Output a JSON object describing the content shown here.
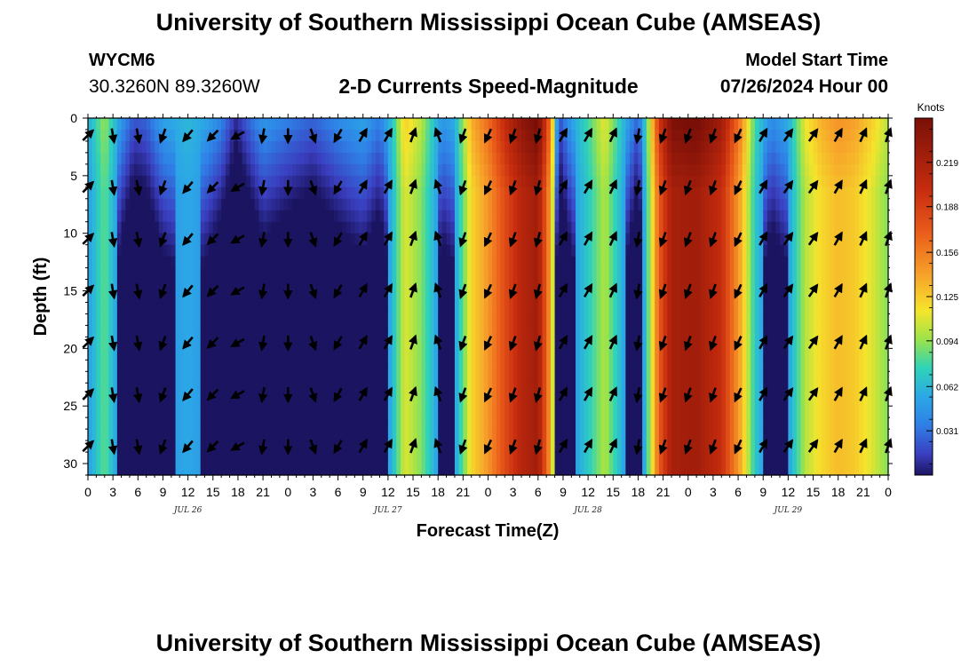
{
  "header": {
    "title": "University of Southern Mississippi Ocean Cube (AMSEAS)",
    "station_id": "WYCM6",
    "station_coords": "30.3260N  89.3260W",
    "subtitle": "2-D Currents Speed-Magnitude",
    "model_start_label": "Model Start Time",
    "model_start_value": "07/26/2024 Hour 00"
  },
  "footer": {
    "title": "University of Southern Mississippi Ocean Cube (AMSEAS)"
  },
  "chart_data": {
    "type": "heatmap",
    "title": "2-D Currents Speed-Magnitude",
    "xlabel": "Forecast Time(Z)",
    "ylabel": "Depth (ft)",
    "xlim": [
      0,
      96
    ],
    "ylim": [
      31,
      0
    ],
    "x_tick_labels": [
      "0",
      "3",
      "6",
      "9",
      "12",
      "15",
      "18",
      "21",
      "0",
      "3",
      "6",
      "9",
      "12",
      "15",
      "18",
      "21",
      "0",
      "3",
      "6",
      "9",
      "12",
      "15",
      "18",
      "21",
      "0",
      "3",
      "6",
      "9",
      "12",
      "15",
      "18",
      "21",
      "0"
    ],
    "date_labels": [
      {
        "hour": 12,
        "label": "JUL 26"
      },
      {
        "hour": 36,
        "label": "JUL 27"
      },
      {
        "hour": 60,
        "label": "JUL 28"
      },
      {
        "hour": 84,
        "label": "JUL 29"
      }
    ],
    "y_ticks": [
      0,
      5,
      10,
      15,
      20,
      25,
      30
    ],
    "colorbar": {
      "unit": "Knots",
      "min": 0.0,
      "max": 0.25,
      "tick_values": [
        0.031,
        0.062,
        0.094,
        0.125,
        0.156,
        0.188,
        0.219
      ],
      "tick_labels": [
        "0.031",
        "0.062",
        "0.094",
        "0.125",
        "0.156",
        "0.188",
        "0.219"
      ]
    },
    "speed_profile": [
      {
        "hour": 0,
        "speed": 0.05
      },
      {
        "hour": 2,
        "speed": 0.085
      },
      {
        "hour": 4,
        "speed": 0.04
      },
      {
        "hour": 5.5,
        "speed": 0.018
      },
      {
        "hour": 7,
        "speed": 0.022
      },
      {
        "hour": 9,
        "speed": 0.045
      },
      {
        "hour": 12,
        "speed": 0.055
      },
      {
        "hour": 14,
        "speed": 0.048
      },
      {
        "hour": 16,
        "speed": 0.032
      },
      {
        "hour": 17.8,
        "speed": 0.006
      },
      {
        "hour": 19,
        "speed": 0.02
      },
      {
        "hour": 21,
        "speed": 0.04
      },
      {
        "hour": 24,
        "speed": 0.03
      },
      {
        "hour": 27,
        "speed": 0.022
      },
      {
        "hour": 30,
        "speed": 0.035
      },
      {
        "hour": 33,
        "speed": 0.045
      },
      {
        "hour": 35,
        "speed": 0.03
      },
      {
        "hour": 36.5,
        "speed": 0.06
      },
      {
        "hour": 38,
        "speed": 0.11
      },
      {
        "hour": 40,
        "speed": 0.09
      },
      {
        "hour": 42.5,
        "speed": 0.04
      },
      {
        "hour": 44,
        "speed": 0.05
      },
      {
        "hour": 46,
        "speed": 0.12
      },
      {
        "hour": 48,
        "speed": 0.145
      },
      {
        "hour": 50,
        "speed": 0.18
      },
      {
        "hour": 52,
        "speed": 0.21
      },
      {
        "hour": 54,
        "speed": 0.225
      },
      {
        "hour": 55.5,
        "speed": 0.14
      },
      {
        "hour": 56.5,
        "speed": 0.015
      },
      {
        "hour": 58,
        "speed": 0.045
      },
      {
        "hour": 60,
        "speed": 0.07
      },
      {
        "hour": 62,
        "speed": 0.1
      },
      {
        "hour": 64,
        "speed": 0.06
      },
      {
        "hour": 66,
        "speed": 0.02
      },
      {
        "hour": 67,
        "speed": 0.07
      },
      {
        "hour": 68.5,
        "speed": 0.17
      },
      {
        "hour": 70,
        "speed": 0.22
      },
      {
        "hour": 73,
        "speed": 0.225
      },
      {
        "hour": 76,
        "speed": 0.2
      },
      {
        "hour": 78.5,
        "speed": 0.13
      },
      {
        "hour": 80,
        "speed": 0.07
      },
      {
        "hour": 82,
        "speed": 0.035
      },
      {
        "hour": 84,
        "speed": 0.05
      },
      {
        "hour": 86,
        "speed": 0.1
      },
      {
        "hour": 88,
        "speed": 0.12
      },
      {
        "hour": 90,
        "speed": 0.13
      },
      {
        "hour": 92,
        "speed": 0.125
      },
      {
        "hour": 94,
        "speed": 0.11
      },
      {
        "hour": 96,
        "speed": 0.09
      }
    ],
    "arrow_directions_deg": [
      {
        "hour": 0,
        "dir": 45
      },
      {
        "hour": 3,
        "dir": 170
      },
      {
        "hour": 6,
        "dir": 170
      },
      {
        "hour": 9,
        "dir": 200
      },
      {
        "hour": 12,
        "dir": 220
      },
      {
        "hour": 15,
        "dir": 225
      },
      {
        "hour": 18,
        "dir": 240
      },
      {
        "hour": 21,
        "dir": 190
      },
      {
        "hour": 24,
        "dir": 180
      },
      {
        "hour": 27,
        "dir": 160
      },
      {
        "hour": 30,
        "dir": 210
      },
      {
        "hour": 33,
        "dir": 30
      },
      {
        "hour": 36,
        "dir": 30
      },
      {
        "hour": 39,
        "dir": 20
      },
      {
        "hour": 42,
        "dir": 340
      },
      {
        "hour": 45,
        "dir": 200
      },
      {
        "hour": 48,
        "dir": 205
      },
      {
        "hour": 51,
        "dir": 200
      },
      {
        "hour": 54,
        "dir": 195
      },
      {
        "hour": 57,
        "dir": 30
      },
      {
        "hour": 60,
        "dir": 30
      },
      {
        "hour": 63,
        "dir": 25
      },
      {
        "hour": 66,
        "dir": 190
      },
      {
        "hour": 69,
        "dir": 200
      },
      {
        "hour": 72,
        "dir": 200
      },
      {
        "hour": 75,
        "dir": 200
      },
      {
        "hour": 78,
        "dir": 205
      },
      {
        "hour": 81,
        "dir": 30
      },
      {
        "hour": 84,
        "dir": 35
      },
      {
        "hour": 87,
        "dir": 35
      },
      {
        "hour": 90,
        "dir": 30
      },
      {
        "hour": 93,
        "dir": 25
      },
      {
        "hour": 96,
        "dir": 20
      }
    ]
  }
}
